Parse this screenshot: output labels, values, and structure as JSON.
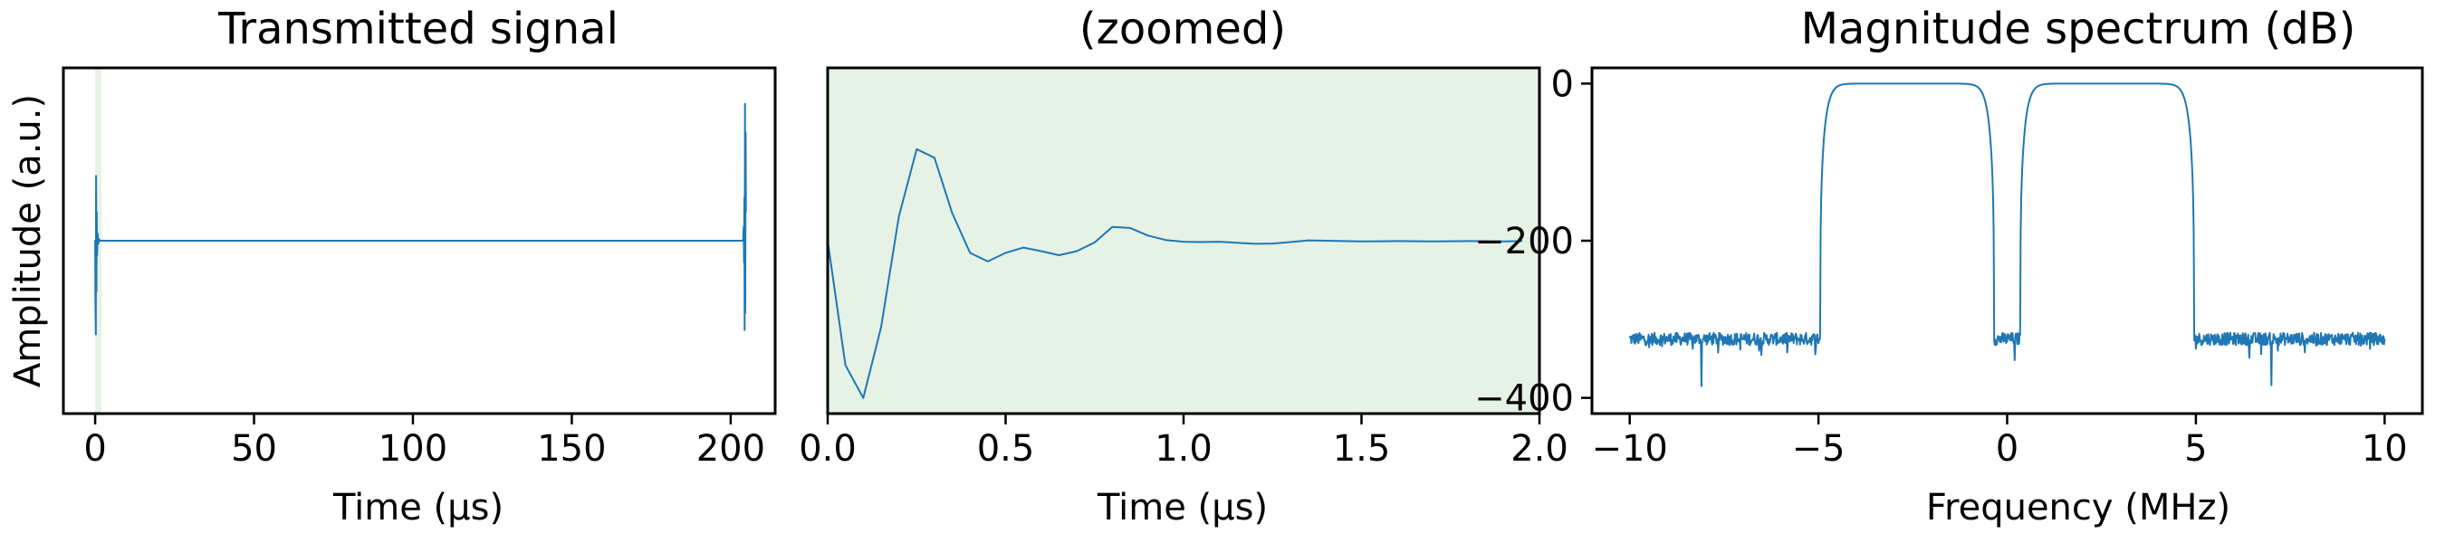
{
  "chart_data": [
    {
      "type": "line",
      "title": "Transmitted signal",
      "xlabel": "Time (µs)",
      "ylabel": "Amplitude (a.u.)",
      "xlim": [
        -10,
        214
      ],
      "ylim": [
        -1.2,
        1.2
      ],
      "xticks": [
        0,
        50,
        100,
        150,
        200
      ],
      "xtick_labels": [
        "0",
        "50",
        "100",
        "150",
        "200"
      ],
      "yticks": [],
      "highlight_span": [
        0,
        2
      ],
      "color": "#1f77b4",
      "highlight_color": "#e6f2e6",
      "series": [
        {
          "x": [
            0,
            0.1,
            0.2,
            0.3,
            0.4,
            0.5,
            0.6,
            0.8,
            1.0,
            1.2,
            1.5,
            2.0,
            203.9,
            204.1,
            204.2,
            204.3,
            204.4,
            204.5,
            204.6,
            204.7,
            204.8
          ],
          "y": [
            0,
            -0.45,
            -0.65,
            0.45,
            -0.35,
            0.2,
            -0.1,
            0.05,
            -0.02,
            0.01,
            0,
            0,
            0,
            0.1,
            -0.15,
            0.3,
            -0.62,
            0.95,
            -0.5,
            0.75,
            0.2
          ]
        }
      ]
    },
    {
      "type": "line",
      "title": "(zoomed)",
      "xlabel": "Time (µs)",
      "ylabel": "",
      "xlim": [
        0.0,
        2.0
      ],
      "ylim": [
        -0.5,
        0.5
      ],
      "xticks": [
        0.0,
        0.5,
        1.0,
        1.5,
        2.0
      ],
      "xtick_labels": [
        "0.0",
        "0.5",
        "1.0",
        "1.5",
        "2.0"
      ],
      "yticks": [],
      "color": "#1f77b4",
      "background": "#e6f2e6",
      "series": [
        {
          "x": [
            0.0,
            0.05,
            0.1,
            0.15,
            0.2,
            0.25,
            0.3,
            0.35,
            0.4,
            0.45,
            0.5,
            0.55,
            0.6,
            0.65,
            0.7,
            0.75,
            0.8,
            0.85,
            0.9,
            0.95,
            1.0,
            1.05,
            1.1,
            1.15,
            1.2,
            1.25,
            1.3,
            1.35,
            1.4,
            1.5,
            1.6,
            1.7,
            1.8,
            1.9,
            1.95
          ],
          "y": [
            0.0,
            -0.36,
            -0.455,
            -0.25,
            0.07,
            0.265,
            0.24,
            0.08,
            -0.035,
            -0.06,
            -0.035,
            -0.02,
            -0.03,
            -0.042,
            -0.03,
            -0.005,
            0.04,
            0.037,
            0.015,
            0.002,
            -0.003,
            -0.004,
            -0.003,
            -0.006,
            -0.009,
            -0.008,
            -0.004,
            0.001,
            0.0,
            -0.002,
            -0.001,
            -0.002,
            -0.001,
            -0.002,
            -0.001
          ]
        }
      ]
    },
    {
      "type": "line",
      "title": "Magnitude spectrum (dB)",
      "xlabel": "Frequency (MHz)",
      "ylabel": "",
      "xlim": [
        -11,
        11
      ],
      "ylim": [
        -420,
        20
      ],
      "xticks": [
        -10,
        -5,
        0,
        5,
        10
      ],
      "xtick_labels": [
        "−10",
        "−5",
        "0",
        "5",
        "10"
      ],
      "yticks": [
        0,
        -200,
        -400
      ],
      "ytick_labels": [
        "0",
        "−200",
        "−400"
      ],
      "color": "#1f77b4",
      "noise_floor_db": -325,
      "passbands": [
        {
          "edges": [
            -4.95,
            -0.35
          ],
          "level_db": 0
        },
        {
          "edges": [
            0.35,
            4.95
          ],
          "level_db": 0
        }
      ],
      "notches": [
        {
          "x": -8.1,
          "y": -385
        },
        {
          "x": 7.0,
          "y": -384
        },
        {
          "x": 0.2,
          "y": -352
        }
      ]
    }
  ]
}
